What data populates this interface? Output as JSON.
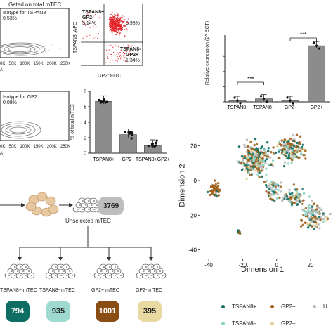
{
  "flow": {
    "gated_label": "Gated on total mTEC",
    "isotype_tspan8": "Isotype for TSPAN8",
    "isotype_tspan8_pct": "0.53%",
    "isotype_gp2": "Isotype for GP2",
    "isotype_gp2_pct": "0.09%",
    "x_ticks": [
      "0K",
      "50K",
      "100K",
      "150K",
      "200K",
      "250K"
    ],
    "x_ticks_b": [
      "0K",
      "50K",
      "100K",
      "150K",
      "200K",
      "250K"
    ],
    "a_label_1": "A",
    "a_label_2": "A",
    "gate_tl": "TSPAN8+\nGP2-",
    "gate_tl_line1": "TSPAN8+",
    "gate_tl_line2": "GP2-",
    "gate_tl_pct": "5.14%",
    "gate_tr_pct": "0.98%",
    "gate_br_line1": "TSPAN8-",
    "gate_br_line2": "GP2+",
    "gate_br_pct": "1.34%",
    "ylabel_dot": "TSPAN8::APC",
    "xlabel_dot": "GP2::FITC"
  },
  "pct_chart": {
    "ylabel": "% of total mTEC",
    "yticks": [
      "0",
      "2",
      "4",
      "6",
      "8"
    ],
    "categories": [
      "TSPAN8+",
      "GP2+",
      "TSPAN8+GP2+"
    ]
  },
  "expr_chart": {
    "ylabel": "Relative expression (2^-ΔCT)",
    "categories": [
      "TSPAN8-",
      "TSPAN8+",
      "GP2-",
      "GP2+"
    ],
    "sig1": "***",
    "sig2": "***"
  },
  "workflow": {
    "unselected_label": "Unselected mTEC",
    "unselected_count": "3769",
    "groups": [
      {
        "label": "TSPAN8+ mTEC",
        "count": "794",
        "color": "#0f6e63",
        "text_color": "#ffffff"
      },
      {
        "label": "TSPAN8- mTEC",
        "count": "935",
        "color": "#9fdad0",
        "text_color": "#222222"
      },
      {
        "label": "GP2+ mTEC",
        "count": "1001",
        "color": "#8a4e14",
        "text_color": "#ffffff"
      },
      {
        "label": "GP2- mTEC",
        "count": "395",
        "color": "#e8d9a3",
        "text_color": "#222222"
      }
    ]
  },
  "tsne": {
    "xlabel": "Dimension 1",
    "ylabel": "Dimension 2",
    "xticks": [
      "-40",
      "-20",
      "0",
      "20"
    ],
    "yticks": [
      "20",
      "0",
      "-20",
      "-40"
    ],
    "legend": [
      {
        "label": "TSPAN8+",
        "color": "#0f6e63"
      },
      {
        "label": "GP2+",
        "color": "#a0601a"
      },
      {
        "label": "U",
        "color": "#b9b9b9"
      },
      {
        "label": "TSPAN8–",
        "color": "#8fd3c5"
      },
      {
        "label": "GP2–",
        "color": "#e0cf96"
      }
    ]
  },
  "chart_data": [
    {
      "type": "bar",
      "title": "",
      "ylabel": "% of total mTEC",
      "categories": [
        "TSPAN8+",
        "GP2+",
        "TSPAN8+GP2+"
      ],
      "values": [
        6.7,
        2.4,
        1.0
      ],
      "ylim": [
        0,
        8
      ]
    },
    {
      "type": "bar",
      "title": "",
      "ylabel": "Relative expression (2^-ΔCT)",
      "categories": [
        "TSPAN8-",
        "TSPAN8+",
        "GP2-",
        "GP2+"
      ],
      "values": [
        0.05,
        1.0,
        0.1,
        18.5
      ],
      "note_scale": "y axis tick labels not visible; values estimated relative"
    },
    {
      "type": "scatter",
      "xlabel": "Dimension 1",
      "ylabel": "Dimension 2",
      "xlim": [
        -45,
        32
      ],
      "ylim": [
        -45,
        32
      ],
      "series": [
        {
          "name": "TSPAN8+"
        },
        {
          "name": "GP2+"
        },
        {
          "name": "TSPAN8–"
        },
        {
          "name": "GP2–"
        }
      ]
    }
  ]
}
